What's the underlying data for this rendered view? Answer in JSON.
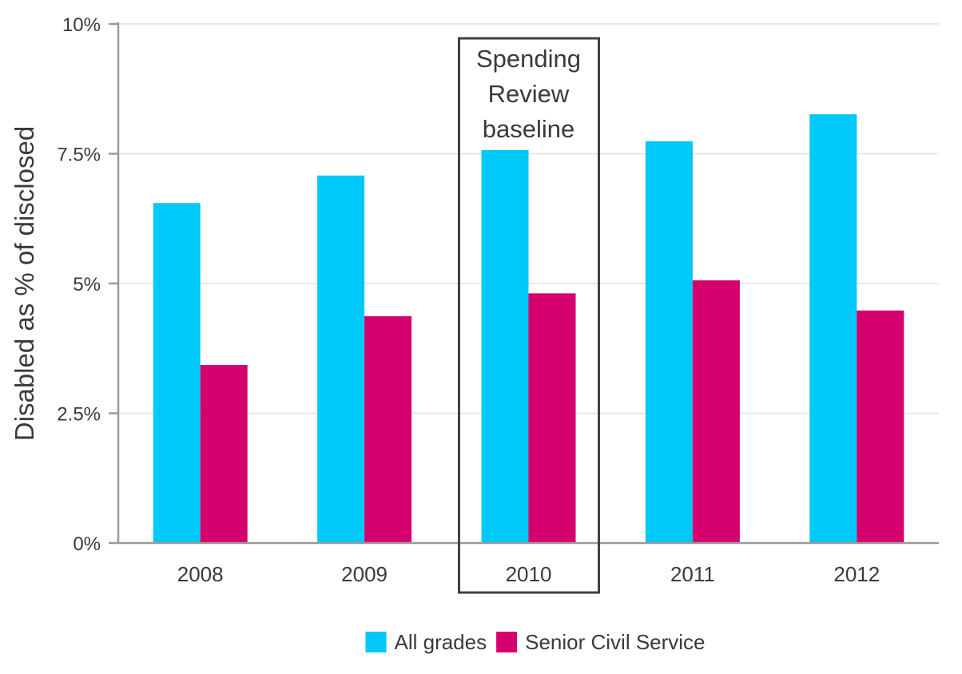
{
  "chart_data": {
    "type": "bar",
    "title": "",
    "xlabel": "",
    "ylabel": "Disabled as % of disclosed",
    "categories": [
      "2008",
      "2009",
      "2010",
      "2011",
      "2012"
    ],
    "series": [
      {
        "name": "All grades",
        "color": "#00C8F8",
        "values": [
          6.55,
          7.08,
          7.57,
          7.74,
          8.26
        ]
      },
      {
        "name": "Senior Civil Service",
        "color": "#D5006E",
        "values": [
          3.43,
          4.37,
          4.81,
          5.06,
          4.48
        ]
      }
    ],
    "ylim": [
      0,
      10
    ],
    "yticks": [
      {
        "value": 0,
        "label": "0%"
      },
      {
        "value": 2.5,
        "label": "2.5%"
      },
      {
        "value": 5,
        "label": "5%"
      },
      {
        "value": 7.5,
        "label": "7.5%"
      },
      {
        "value": 10,
        "label": "10%"
      }
    ],
    "grid": true,
    "legend_position": "bottom",
    "annotation": {
      "category": "2010",
      "lines": [
        "Spending",
        "Review",
        "baseline"
      ]
    }
  }
}
